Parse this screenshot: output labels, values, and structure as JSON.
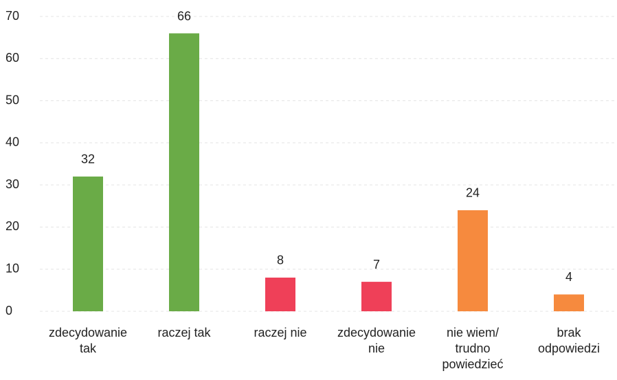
{
  "chart_data": {
    "type": "bar",
    "categories": [
      "zdecydowanie\ntak",
      "raczej tak",
      "raczej nie",
      "zdecydowanie\nnie",
      "nie wiem/\ntrudno\npowiedzieć",
      "brak\nodpowiedzi"
    ],
    "values": [
      32,
      66,
      8,
      7,
      24,
      4
    ],
    "colors": [
      "#6aab47",
      "#6aab47",
      "#ef4058",
      "#ef4058",
      "#f68a3e",
      "#f68a3e"
    ],
    "ylim": [
      0,
      70
    ],
    "yticks": [
      0,
      10,
      20,
      30,
      40,
      50,
      60,
      70
    ],
    "grid": true
  }
}
